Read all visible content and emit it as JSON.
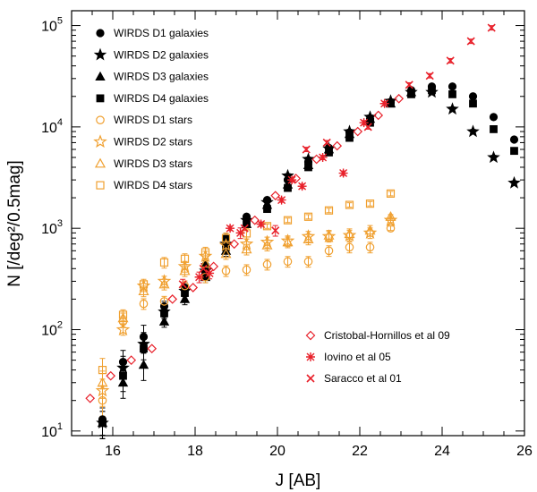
{
  "chart_data": {
    "type": "scatter",
    "xlabel": "J [AB]",
    "ylabel": "N [/deg²/0.5mag]",
    "xlim": [
      15.0,
      26.0
    ],
    "ylim": [
      9,
      140000
    ],
    "yscale": "log",
    "x_ticks": [
      16,
      18,
      20,
      22,
      24,
      26
    ],
    "x_tick_labels": [
      "16",
      "18",
      "20",
      "22",
      "24",
      "26"
    ],
    "y_ticks": [
      10,
      100,
      1000,
      10000,
      100000
    ],
    "y_tick_labels": [
      {
        "base": "10",
        "exp": "1"
      },
      {
        "base": "10",
        "exp": "2"
      },
      {
        "base": "10",
        "exp": "3"
      },
      {
        "base": "10",
        "exp": "4"
      },
      {
        "base": "10",
        "exp": "5"
      }
    ],
    "legend_top_left": [
      {
        "label": "WIRDS D1 galaxies",
        "marker": "circle",
        "color": "#000000",
        "filled": true
      },
      {
        "label": "WIRDS D2 galaxies",
        "marker": "star",
        "color": "#000000",
        "filled": true
      },
      {
        "label": "WIRDS D3 galaxies",
        "marker": "triangle",
        "color": "#000000",
        "filled": true
      },
      {
        "label": "WIRDS D4 galaxies",
        "marker": "square",
        "color": "#000000",
        "filled": true
      },
      {
        "label": "WIRDS D1 stars",
        "marker": "circle",
        "color": "#f0a030",
        "filled": false
      },
      {
        "label": "WIRDS D2 stars",
        "marker": "star",
        "color": "#f0a030",
        "filled": false
      },
      {
        "label": "WIRDS D3 stars",
        "marker": "triangle",
        "color": "#f0a030",
        "filled": false
      },
      {
        "label": "WIRDS D4 stars",
        "marker": "square",
        "color": "#f0a030",
        "filled": false
      }
    ],
    "legend_bottom_right": [
      {
        "label": "Cristobal-Hornillos et al 09",
        "marker": "diamond",
        "color": "#e8202a",
        "filled": false
      },
      {
        "label": "Iovino et al 05",
        "marker": "asterisk",
        "color": "#e8202a",
        "filled": false
      },
      {
        "label": "Saracco et al 01",
        "marker": "cross",
        "color": "#e8202a",
        "filled": false
      }
    ],
    "series": [
      {
        "name": "WIRDS D1 galaxies",
        "marker": "circle",
        "color": "#000000",
        "filled": true,
        "x": [
          15.75,
          16.25,
          16.75,
          17.25,
          17.75,
          18.25,
          18.75,
          19.25,
          19.75,
          20.25,
          20.75,
          21.25,
          21.75,
          22.25,
          22.75,
          23.25,
          23.75,
          24.25,
          24.75,
          25.25,
          25.75
        ],
        "y": [
          13,
          48,
          85,
          170,
          260,
          430,
          800,
          1300,
          1900,
          3000,
          4500,
          6200,
          8800,
          12000,
          17500,
          23000,
          25000,
          25000,
          20000,
          12500,
          7500
        ]
      },
      {
        "name": "WIRDS D2 galaxies",
        "marker": "star",
        "color": "#000000",
        "filled": true,
        "x": [
          15.75,
          16.25,
          16.75,
          17.25,
          17.75,
          18.25,
          18.75,
          19.25,
          19.75,
          20.25,
          20.75,
          21.25,
          21.75,
          22.25,
          22.75,
          23.25,
          23.75,
          24.25,
          24.75,
          25.25,
          25.75
        ],
        "y": [
          12,
          42,
          72,
          150,
          240,
          380,
          700,
          1200,
          1800,
          3300,
          4800,
          6100,
          9000,
          12500,
          18000,
          22000,
          22000,
          15000,
          9000,
          5000,
          2800
        ]
      },
      {
        "name": "WIRDS D3 galaxies",
        "marker": "triangle",
        "color": "#000000",
        "filled": true,
        "x": [
          15.75,
          16.25,
          16.75,
          17.25,
          17.75,
          18.25,
          18.75,
          19.25,
          19.75,
          20.25,
          20.75,
          21.25,
          21.75,
          22.25,
          22.75,
          23.25
        ],
        "y": [
          12,
          30,
          45,
          120,
          200,
          330,
          600,
          1100,
          1700,
          2700,
          4200,
          6000,
          8500,
          12000,
          17000,
          22000
        ]
      },
      {
        "name": "WIRDS D4 galaxies",
        "marker": "square",
        "color": "#000000",
        "filled": true,
        "x": [
          15.75,
          16.25,
          16.75,
          17.25,
          17.75,
          18.25,
          18.75,
          19.25,
          19.75,
          20.25,
          20.75,
          21.25,
          21.75,
          22.25,
          22.75,
          23.25,
          23.75,
          24.25,
          24.75,
          25.25,
          25.75
        ],
        "y": [
          12,
          35,
          65,
          145,
          230,
          350,
          650,
          1100,
          1550,
          2500,
          4000,
          5600,
          7800,
          11000,
          17000,
          21000,
          23000,
          21000,
          17000,
          9500,
          5800
        ]
      },
      {
        "name": "WIRDS D1 stars",
        "marker": "circle",
        "color": "#f0a030",
        "filled": false,
        "x": [
          15.75,
          16.25,
          16.75,
          17.25,
          17.75,
          18.25,
          18.75,
          19.25,
          19.75,
          20.25,
          20.75,
          21.25,
          21.75,
          22.25,
          22.75
        ],
        "y": [
          20,
          120,
          180,
          190,
          270,
          330,
          380,
          390,
          440,
          470,
          470,
          600,
          650,
          650,
          1000
        ]
      },
      {
        "name": "WIRDS D2 stars",
        "marker": "star",
        "color": "#f0a030",
        "filled": false,
        "x": [
          15.75,
          16.25,
          16.75,
          17.25,
          17.75,
          18.25,
          18.75,
          19.25,
          19.75,
          20.25,
          20.75,
          21.25,
          21.75,
          22.25,
          22.75
        ],
        "y": [
          25,
          100,
          270,
          300,
          420,
          530,
          680,
          700,
          730,
          750,
          830,
          830,
          850,
          900,
          1200
        ]
      },
      {
        "name": "WIRDS D3 stars",
        "marker": "triangle",
        "color": "#f0a030",
        "filled": false,
        "x": [
          15.75,
          16.25,
          16.75,
          17.25,
          17.75,
          18.25,
          18.75,
          19.25,
          19.75,
          20.25,
          20.75,
          21.25,
          21.75,
          22.25,
          22.75
        ],
        "y": [
          30,
          130,
          240,
          280,
          380,
          450,
          560,
          620,
          680,
          730,
          780,
          850,
          880,
          950,
          1300
        ]
      },
      {
        "name": "WIRDS D4 stars",
        "marker": "square",
        "color": "#f0a030",
        "filled": false,
        "x": [
          15.75,
          16.25,
          16.75,
          17.25,
          17.75,
          18.25,
          18.75,
          19.25,
          19.75,
          20.25,
          20.75,
          21.25,
          21.75,
          22.25,
          22.75
        ],
        "y": [
          40,
          140,
          280,
          460,
          500,
          580,
          800,
          890,
          1050,
          1200,
          1300,
          1500,
          1700,
          1750,
          2200
        ]
      },
      {
        "name": "Cristobal-Hornillos et al 09",
        "marker": "diamond",
        "color": "#e8202a",
        "filled": false,
        "x": [
          15.45,
          15.95,
          16.45,
          16.95,
          17.45,
          17.95,
          18.45,
          18.95,
          19.45,
          19.95,
          20.45,
          20.95,
          21.45,
          21.95,
          22.45,
          22.95
        ],
        "y": [
          21,
          35,
          50,
          65,
          200,
          260,
          420,
          700,
          1200,
          2100,
          3100,
          4800,
          6500,
          9000,
          13000,
          19000
        ]
      },
      {
        "name": "Iovino et al 05",
        "marker": "asterisk",
        "color": "#e8202a",
        "filled": false,
        "x": [
          18.1,
          18.35,
          18.85,
          19.1,
          19.6,
          20.1,
          20.35,
          20.6,
          21.1,
          21.6,
          22.1,
          22.6
        ],
        "y": [
          330,
          360,
          1000,
          900,
          1100,
          1900,
          3000,
          2600,
          5000,
          3500,
          11000,
          17000
        ]
      },
      {
        "name": "Saracco et al 01",
        "marker": "cross",
        "color": "#e8202a",
        "filled": false,
        "x": [
          17.7,
          18.2,
          19.2,
          19.95,
          20.7,
          21.2,
          22.2,
          23.2,
          23.7,
          24.2,
          24.7,
          25.2
        ],
        "y": [
          280,
          400,
          1000,
          950,
          6000,
          7000,
          10000,
          26000,
          32000,
          45000,
          70000,
          95000
        ]
      }
    ]
  }
}
